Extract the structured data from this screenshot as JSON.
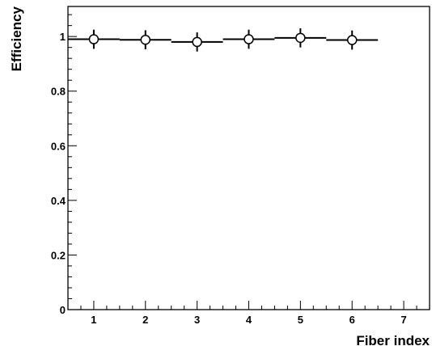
{
  "chart_data": {
    "type": "scatter",
    "title": "",
    "xlabel": "Fiber index",
    "ylabel": "Efficiency",
    "xlim": [
      0.5,
      7.5
    ],
    "ylim": [
      0,
      1.11
    ],
    "x_ticks": [
      1,
      2,
      3,
      4,
      5,
      6,
      7
    ],
    "x_tick_labels": [
      "1",
      "2",
      "3",
      "4",
      "5",
      "6",
      "7"
    ],
    "y_ticks": [
      0,
      0.2,
      0.4,
      0.6,
      0.8,
      1
    ],
    "y_tick_labels": [
      "0",
      "0.2",
      "0.4",
      "0.6",
      "0.8",
      "1"
    ],
    "grid": false,
    "legend": "none",
    "marker": "open-circle",
    "series": [
      {
        "x": [
          1,
          2,
          3,
          4,
          5,
          6
        ],
        "y": [
          0.99,
          0.988,
          0.98,
          0.99,
          0.995,
          0.987
        ],
        "x_err": [
          0.5,
          0.5,
          0.5,
          0.5,
          0.5,
          0.5
        ],
        "y_err": [
          0.035,
          0.035,
          0.035,
          0.035,
          0.035,
          0.035
        ],
        "color": "#000000"
      }
    ]
  }
}
